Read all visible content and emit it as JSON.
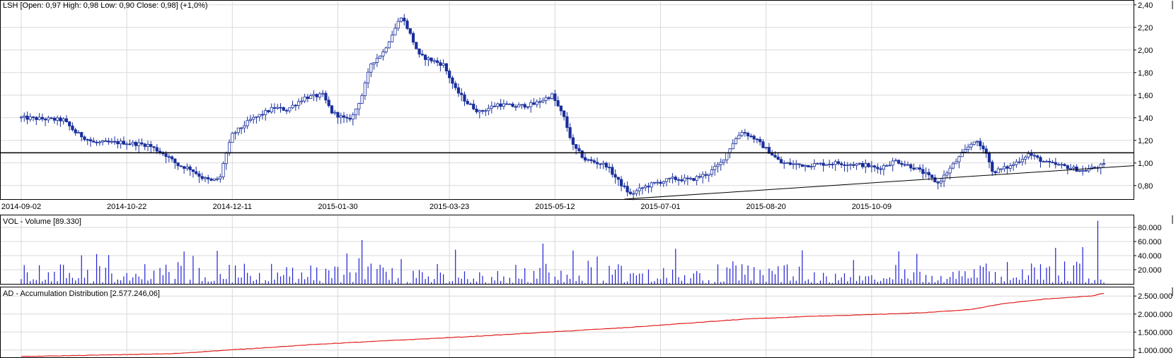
{
  "colors": {
    "candle": "#1a2f9c",
    "volume": "#1f1fd6",
    "ad_line": "#e0201e",
    "grid": "#d9d9d9",
    "frame": "#000000",
    "background": "#ffffff"
  },
  "chart_data": [
    {
      "type": "candlestick",
      "title": "LSH [Open: 0,97  High: 0,98  Low: 0,90  Close: 0,98] (+1,0%)",
      "x_tick_labels": [
        "2014-09-02",
        "2014-10-22",
        "2014-12-11",
        "2015-01-30",
        "2015-03-23",
        "2015-05-12",
        "2015-07-01",
        "2015-08-20",
        "2015-10-09"
      ],
      "y_tick_labels": [
        "2,40",
        "2,20",
        "2,00",
        "1,80",
        "1,60",
        "1,40",
        "1,20",
        "1,00",
        "0,80"
      ],
      "y_ticks": [
        2.4,
        2.2,
        2.0,
        1.8,
        1.6,
        1.4,
        1.2,
        1.0,
        0.8
      ],
      "ylim": [
        0.68,
        2.43
      ],
      "grid": true,
      "horizontal_line": 1.09,
      "trendline": {
        "start": {
          "bar": 200,
          "value": 0.68
        },
        "end": {
          "bar": 352,
          "value": 0.93
        }
      },
      "anchors": [
        [
          0,
          1.4
        ],
        [
          14,
          1.38
        ],
        [
          18,
          1.27
        ],
        [
          24,
          1.18
        ],
        [
          34,
          1.18
        ],
        [
          42,
          1.16
        ],
        [
          48,
          1.07
        ],
        [
          52,
          0.98
        ],
        [
          56,
          0.95
        ],
        [
          60,
          0.87
        ],
        [
          63,
          0.84
        ],
        [
          66,
          0.87
        ],
        [
          67,
          1.0
        ],
        [
          70,
          1.25
        ],
        [
          76,
          1.38
        ],
        [
          84,
          1.49
        ],
        [
          88,
          1.47
        ],
        [
          94,
          1.58
        ],
        [
          100,
          1.6
        ],
        [
          103,
          1.45
        ],
        [
          108,
          1.38
        ],
        [
          110,
          1.42
        ],
        [
          113,
          1.6
        ],
        [
          116,
          1.88
        ],
        [
          120,
          1.98
        ],
        [
          126,
          2.3
        ],
        [
          128,
          2.2
        ],
        [
          132,
          1.95
        ],
        [
          140,
          1.87
        ],
        [
          144,
          1.65
        ],
        [
          148,
          1.53
        ],
        [
          152,
          1.45
        ],
        [
          158,
          1.52
        ],
        [
          164,
          1.5
        ],
        [
          170,
          1.52
        ],
        [
          176,
          1.6
        ],
        [
          180,
          1.4
        ],
        [
          183,
          1.15
        ],
        [
          187,
          1.03
        ],
        [
          194,
          0.98
        ],
        [
          198,
          0.84
        ],
        [
          202,
          0.72
        ],
        [
          206,
          0.78
        ],
        [
          210,
          0.82
        ],
        [
          216,
          0.86
        ],
        [
          222,
          0.85
        ],
        [
          228,
          0.91
        ],
        [
          232,
          1.0
        ],
        [
          236,
          1.18
        ],
        [
          239,
          1.28
        ],
        [
          243,
          1.22
        ],
        [
          248,
          1.1
        ],
        [
          252,
          1.0
        ],
        [
          260,
          0.98
        ],
        [
          270,
          1.0
        ],
        [
          280,
          0.98
        ],
        [
          284,
          0.95
        ],
        [
          290,
          1.02
        ],
        [
          296,
          0.96
        ],
        [
          300,
          0.9
        ],
        [
          304,
          0.82
        ],
        [
          308,
          0.95
        ],
        [
          312,
          1.08
        ],
        [
          316,
          1.2
        ],
        [
          320,
          1.1
        ],
        [
          322,
          0.92
        ],
        [
          328,
          0.97
        ],
        [
          334,
          1.08
        ],
        [
          340,
          1.0
        ],
        [
          346,
          0.97
        ],
        [
          352,
          0.93
        ],
        [
          356,
          0.96
        ],
        [
          359,
          0.98
        ]
      ]
    },
    {
      "type": "bar",
      "title": "VOL - Volume [89.330]",
      "y_tick_labels": [
        "80.000",
        "60.000",
        "40.000",
        "20.000"
      ],
      "y_ticks": [
        80000,
        60000,
        40000,
        20000
      ],
      "ylim": [
        0,
        96000
      ],
      "spikes": [
        [
          113,
          62000
        ],
        [
          126,
          35000
        ],
        [
          173,
          57000
        ],
        [
          291,
          46000
        ],
        [
          343,
          51000
        ],
        [
          352,
          52000
        ],
        [
          357,
          89330
        ]
      ]
    },
    {
      "type": "line",
      "title": "AD - Accumulation Distribution [2.577.246,06]",
      "y_tick_labels": [
        "2.500.000",
        "2.000.000",
        "1.500.000",
        "1.000.000"
      ],
      "y_ticks": [
        2500000,
        2000000,
        1500000,
        1000000
      ],
      "ylim": [
        800000,
        2720000
      ],
      "anchors": [
        [
          0,
          820000
        ],
        [
          50,
          900000
        ],
        [
          100,
          1170000
        ],
        [
          150,
          1380000
        ],
        [
          200,
          1620000
        ],
        [
          240,
          1860000
        ],
        [
          260,
          1930000
        ],
        [
          280,
          1980000
        ],
        [
          300,
          2040000
        ],
        [
          315,
          2130000
        ],
        [
          325,
          2280000
        ],
        [
          340,
          2420000
        ],
        [
          355,
          2500000
        ],
        [
          359,
          2577246
        ]
      ]
    }
  ]
}
